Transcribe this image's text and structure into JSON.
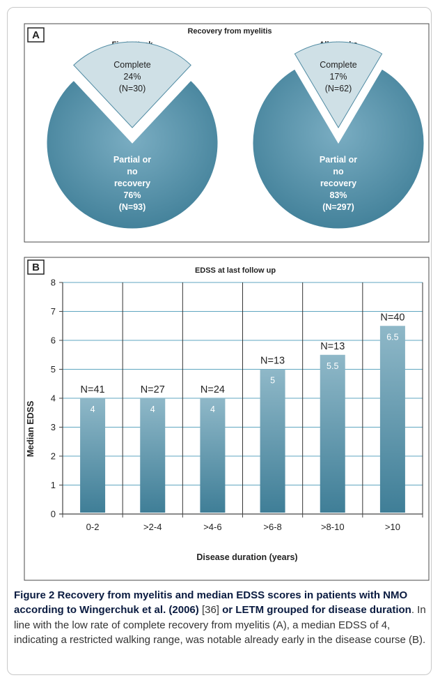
{
  "colors": {
    "pie_major": "#5e97ae",
    "pie_minor": "#cfe0e6",
    "bar_top": "#8fb8c8",
    "bar_bottom": "#3f7e97",
    "border": "#4a4a4a",
    "caption_title": "#0a1b40"
  },
  "chart_data": [
    {
      "type": "pie",
      "panel": "A",
      "title": "Recovery from myelitis",
      "charts": [
        {
          "subtitle": "First attack",
          "slices": [
            {
              "name": "Complete",
              "percent": 24,
              "n": 30,
              "label_lines": [
                "Complete",
                "24%",
                "(N=30)"
              ],
              "exploded": true
            },
            {
              "name": "Partial or no recovery",
              "percent": 76,
              "n": 93,
              "label_lines": [
                "Partial or",
                "no",
                "recovery",
                "76%",
                "(N=93)"
              ],
              "exploded": false
            }
          ]
        },
        {
          "subtitle": "All attacks",
          "slices": [
            {
              "name": "Complete",
              "percent": 17,
              "n": 62,
              "label_lines": [
                "Complete",
                "17%",
                "(N=62)"
              ],
              "exploded": true
            },
            {
              "name": "Partial or no recovery",
              "percent": 83,
              "n": 297,
              "label_lines": [
                "Partial or",
                "no",
                "recovery",
                "83%",
                "(N=297)"
              ],
              "exploded": false
            }
          ]
        }
      ]
    },
    {
      "type": "bar",
      "panel": "B",
      "title": "EDSS at last follow up",
      "xlabel": "Disease duration (years)",
      "ylabel": "Median EDSS",
      "ylim": [
        0,
        8
      ],
      "yticks": [
        "0",
        "1",
        "2",
        "3",
        "4",
        "5",
        "6",
        "7",
        "8"
      ],
      "categories": [
        "0-2",
        ">2-4",
        ">4-6",
        ">6-8",
        ">8-10",
        ">10"
      ],
      "values": [
        4,
        4,
        4,
        5,
        5.5,
        6.5
      ],
      "value_labels": [
        "4",
        "4",
        "4",
        "5",
        "5.5",
        "6.5"
      ],
      "n_labels": [
        "N=41",
        "N=27",
        "N=24",
        "N=13",
        "N=13",
        "N=40"
      ],
      "grid": true
    }
  ],
  "caption": {
    "title": "Figure 2 Recovery from myelitis and median EDSS scores in patients with NMO according to Wingerchuk et al. (2006)",
    "ref": "[36]",
    "title_end": "or LETM grouped for disease duration",
    "body": ". In line with the low rate of complete recovery from myelitis (A), a median EDSS of 4, indicating a restricted walking range, was notable already early in the disease course (B)."
  }
}
